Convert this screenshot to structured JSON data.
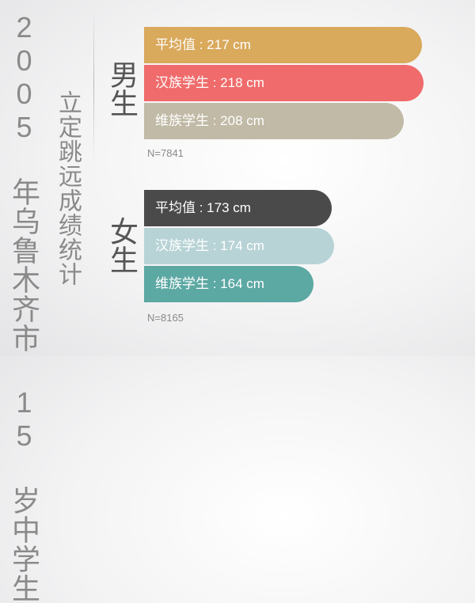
{
  "title": "2005 年乌鲁木齐市 15 岁中学生",
  "subtitle": "立定跳远成绩统计",
  "chart_data": {
    "type": "bar",
    "orientation": "horizontal",
    "unit": "cm",
    "groups": [
      {
        "name": "男生",
        "n_label": "N=7841",
        "bars": [
          {
            "label": "平均值 : 217 cm",
            "value": 217,
            "color": "#d9a95c"
          },
          {
            "label": "汉族学生 : 218 cm",
            "value": 218,
            "color": "#f06b6b"
          },
          {
            "label": "维族学生 : 208 cm",
            "value": 208,
            "color": "#c1baa6"
          }
        ]
      },
      {
        "name": "女生",
        "n_label": "N=8165",
        "bars": [
          {
            "label": "平均值 : 173 cm",
            "value": 173,
            "color": "#4a4a4a"
          },
          {
            "label": "汉族学生 : 174 cm",
            "value": 174,
            "color": "#b8d3d6"
          },
          {
            "label": "维族学生 : 164 cm",
            "value": 164,
            "color": "#5ca8a3"
          }
        ]
      }
    ]
  }
}
